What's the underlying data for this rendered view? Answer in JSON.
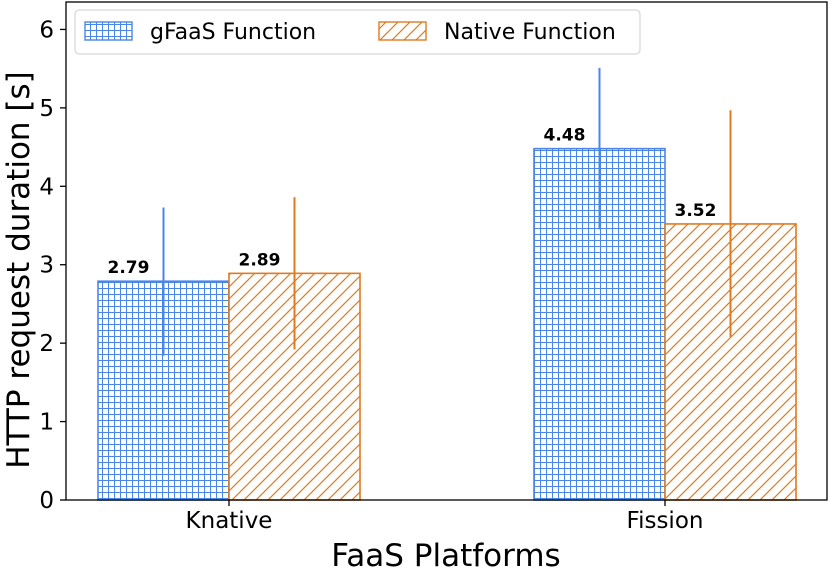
{
  "chart_data": {
    "type": "bar",
    "categories": [
      "Knative",
      "Fission"
    ],
    "series": [
      {
        "name": "gFaaS Function",
        "values": [
          2.79,
          4.48
        ],
        "error_low": [
          1.84,
          3.45
        ],
        "error_high": [
          3.73,
          5.51
        ],
        "color": "#4a86e8",
        "hatch": "grid"
      },
      {
        "name": "Native Function",
        "values": [
          2.89,
          3.52
        ],
        "error_low": [
          1.92,
          2.08
        ],
        "error_high": [
          3.86,
          4.97
        ],
        "color": "#e07a1f",
        "hatch": "diagonal"
      }
    ],
    "value_labels": [
      "2.79",
      "4.48",
      "2.89",
      "3.52"
    ],
    "xlabel": "FaaS Platforms",
    "ylabel": "HTTP request duration [s]",
    "ylim": [
      0,
      6.35
    ],
    "yticks": [
      0,
      1,
      2,
      3,
      4,
      5,
      6
    ],
    "grid": false,
    "legend_position": "top-left"
  }
}
